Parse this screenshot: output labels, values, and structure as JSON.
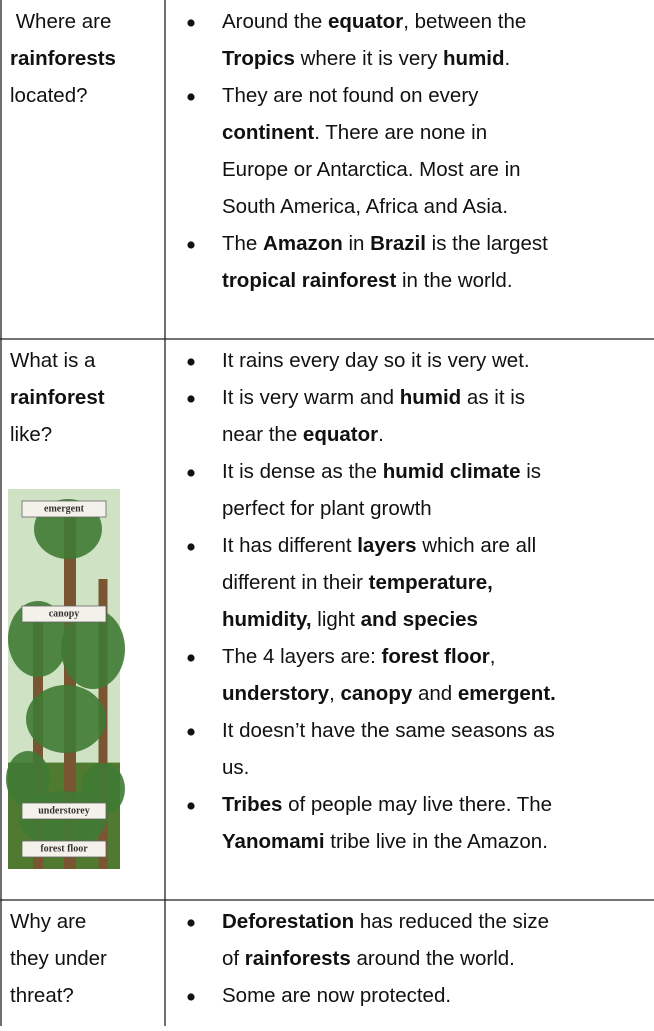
{
  "rows": [
    {
      "question": [
        [
          " Where are"
        ],
        [
          {
            "bold": "rainforests"
          }
        ],
        [
          "located?"
        ]
      ],
      "bullets": [
        [
          [
            "Around the ",
            {
              "bold": "equator"
            },
            ", between the"
          ],
          [
            {
              "bold": "Tropics"
            },
            " where it is very ",
            {
              "bold": "humid"
            },
            "."
          ]
        ],
        [
          [
            "They are not found on every"
          ],
          [
            {
              "bold": "continent"
            },
            ". There are none in"
          ],
          [
            "Europe or Antarctica. Most are in"
          ],
          [
            "South America, Africa and Asia."
          ]
        ],
        [
          [
            "The ",
            {
              "bold": "Amazon"
            },
            " in ",
            {
              "bold": "Brazil"
            },
            " is the largest"
          ],
          [
            {
              "bold": "tropical rainforest"
            },
            " in the world."
          ]
        ]
      ]
    },
    {
      "question": [
        [
          "What is a"
        ],
        [
          {
            "bold": "rainforest"
          }
        ],
        [
          "like?"
        ]
      ],
      "image_labels": [
        "emergent",
        "canopy",
        "understorey",
        "forest floor"
      ],
      "bullets": [
        [
          [
            "It rains every day so it is very wet."
          ]
        ],
        [
          [
            "It is very warm and ",
            {
              "bold": "humid"
            },
            " as it is"
          ],
          [
            "near the ",
            {
              "bold": "equator"
            },
            "."
          ]
        ],
        [
          [
            "It is dense as the ",
            {
              "bold": "humid climate"
            },
            " is"
          ],
          [
            "perfect for plant growth"
          ]
        ],
        [
          [
            "It has different ",
            {
              "bold": "layers"
            },
            " which are all"
          ],
          [
            "different in their ",
            {
              "bold": "temperature,"
            }
          ],
          [
            {
              "bold": "humidity,"
            },
            " light ",
            {
              "bold": "and species"
            }
          ]
        ],
        [
          [
            "The 4 layers are: ",
            {
              "bold": "forest floor"
            },
            ","
          ],
          [
            {
              "bold": "understory"
            },
            ", ",
            {
              "bold": "canopy"
            },
            " and ",
            {
              "bold": "emergent."
            }
          ]
        ],
        [
          [
            "It doesn’t have the same seasons as"
          ],
          [
            "us."
          ]
        ],
        [
          [
            {
              "bold": "Tribes"
            },
            " of people may live there. The"
          ],
          [
            {
              "bold": "Yanomami"
            },
            " tribe live in the Amazon."
          ]
        ]
      ]
    },
    {
      "question": [
        [
          "Why are"
        ],
        [
          "they under"
        ],
        [
          "threat?"
        ]
      ],
      "bullets": [
        [
          [
            {
              "bold": "Deforestation"
            },
            " has reduced the size"
          ],
          [
            "of ",
            {
              "bold": "rainforests"
            },
            " around the world."
          ]
        ],
        [
          [
            "Some are now protected."
          ]
        ]
      ]
    }
  ]
}
